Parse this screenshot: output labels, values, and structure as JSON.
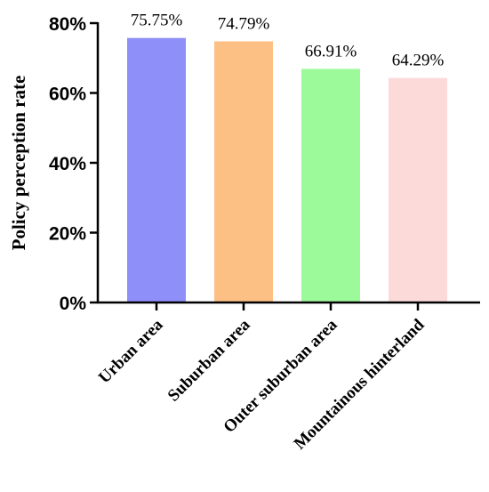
{
  "chart_data": {
    "type": "bar",
    "title": "",
    "xlabel": "",
    "ylabel": "Policy perception rate",
    "ylim": [
      0,
      80
    ],
    "yticks": [
      0,
      20,
      40,
      60,
      80
    ],
    "ytick_labels": [
      "0%",
      "20%",
      "40%",
      "60%",
      "80%"
    ],
    "categories": [
      "Urban area",
      "Suburban area",
      "Outer suburban area",
      "Mountainous hinterland"
    ],
    "values": [
      75.75,
      74.79,
      66.91,
      64.29
    ],
    "value_labels": [
      "75.75%",
      "74.79%",
      "66.91%",
      "64.29%"
    ],
    "colors": [
      "#8f8ff9",
      "#fcbf84",
      "#9dfa9b",
      "#fcdada"
    ],
    "grid": false,
    "legend": "none"
  }
}
